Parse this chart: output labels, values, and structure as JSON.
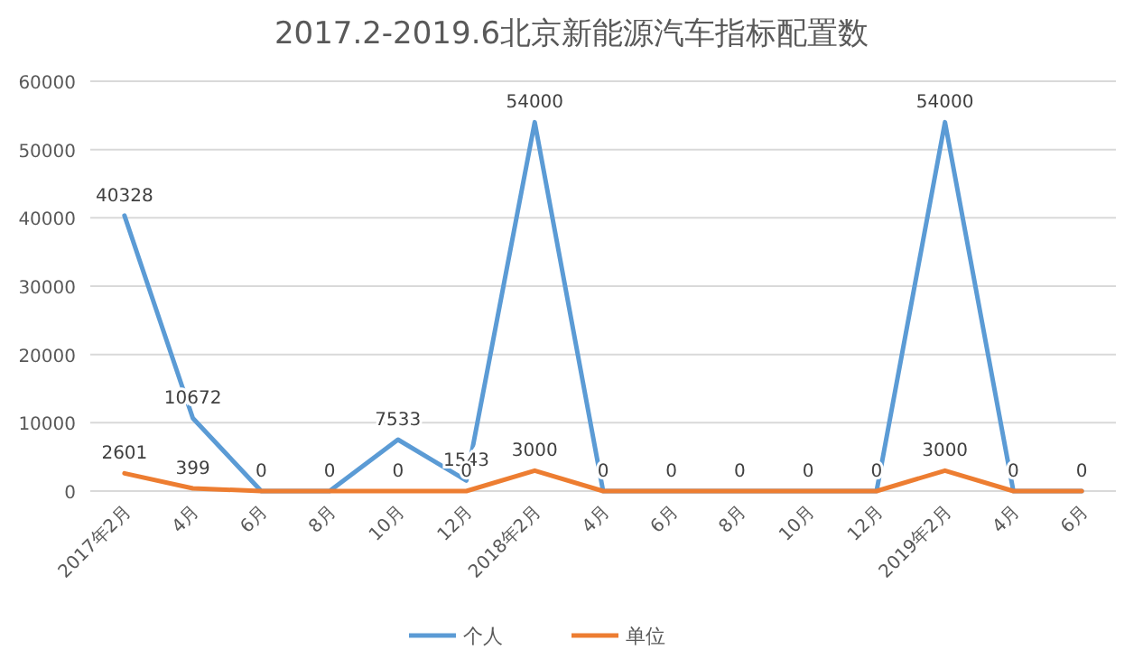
{
  "chart_data": {
    "type": "line",
    "title": "2017.2-2019.6北京新能源汽车指标配置数",
    "categories": [
      "2017年2月",
      "4月",
      "6月",
      "8月",
      "10月",
      "12月",
      "2018年2月",
      "4月",
      "6月",
      "8月",
      "10月",
      "12月",
      "2019年2月",
      "4月",
      "6月"
    ],
    "series": [
      {
        "name": "个人",
        "color": "#5b9bd5",
        "values": [
          40328,
          10672,
          0,
          0,
          7533,
          1543,
          54000,
          0,
          0,
          0,
          0,
          0,
          54000,
          0,
          0
        ],
        "value_labels": [
          "40328",
          "10672",
          "0",
          "0",
          "7533",
          "1543",
          "54000",
          "0",
          "0",
          "0",
          "0",
          "0",
          "54000",
          "0",
          "0"
        ]
      },
      {
        "name": "单位",
        "color": "#ed7d31",
        "values": [
          2601,
          399,
          0,
          0,
          0,
          0,
          3000,
          0,
          0,
          0,
          0,
          0,
          3000,
          0,
          0
        ],
        "value_labels": [
          "2601",
          "399",
          null,
          null,
          "0",
          "0",
          "3000",
          null,
          null,
          null,
          null,
          null,
          "3000",
          null,
          null
        ]
      }
    ],
    "ylim": [
      0,
      60000
    ],
    "yticks": [
      0,
      10000,
      20000,
      30000,
      40000,
      50000,
      60000
    ],
    "grid": "y",
    "legend": "bottom",
    "marker": "none",
    "line_style": "solid"
  }
}
